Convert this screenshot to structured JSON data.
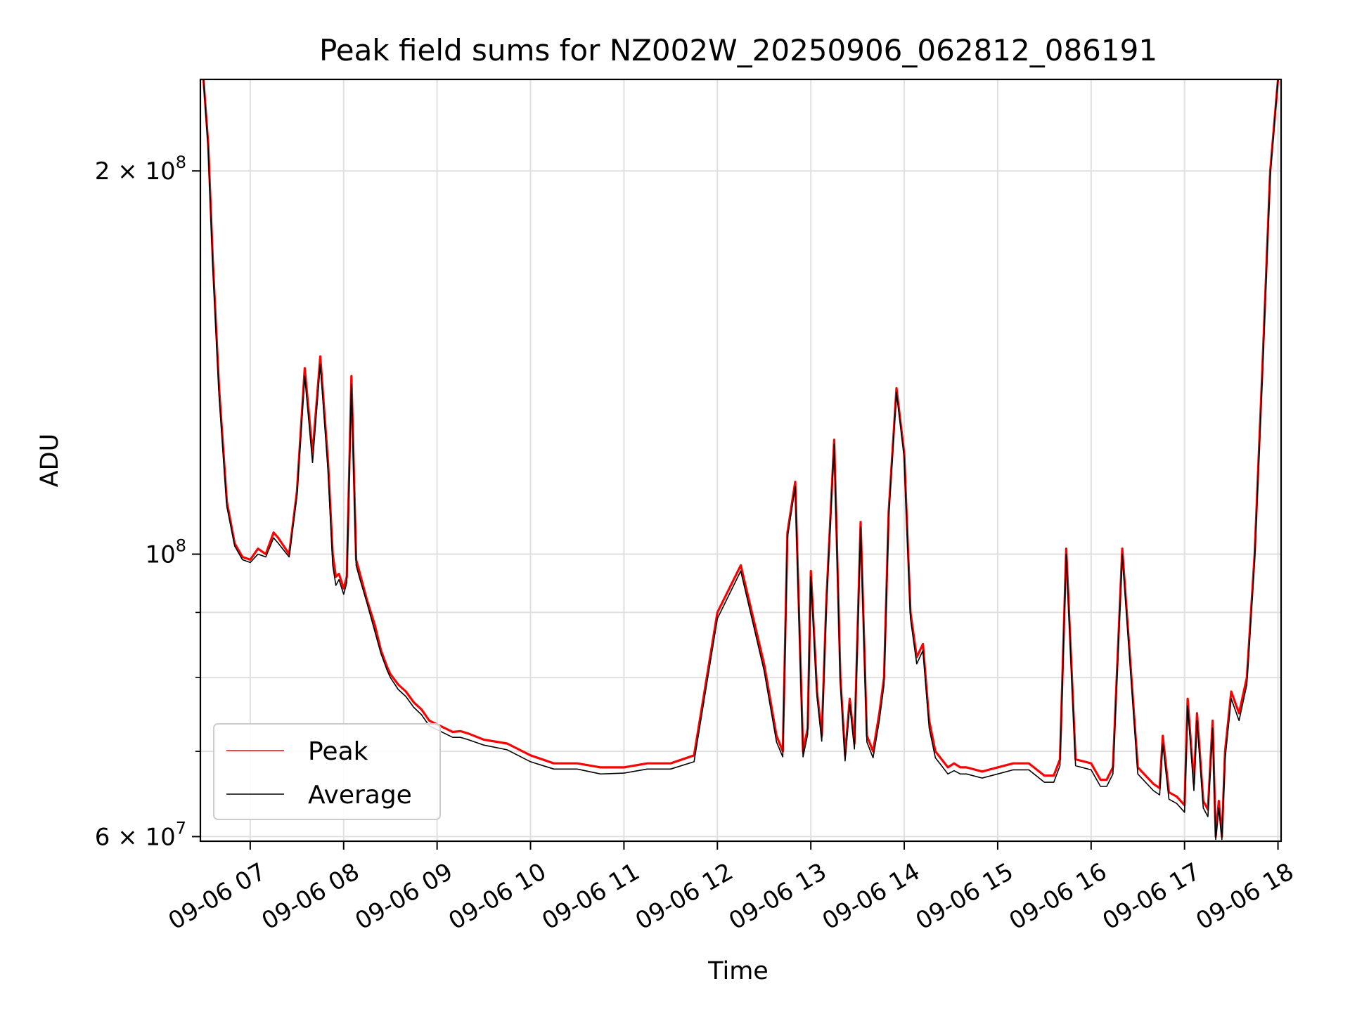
{
  "chart_data": {
    "type": "line",
    "title": "Peak field sums for NZ002W_20250906_062812_086191",
    "xlabel": "Time",
    "ylabel": "ADU",
    "yscale": "log",
    "xlim": [
      "2025-09-06 06:28",
      "2025-09-06 18:02"
    ],
    "ylim": [
      59500000,
      236000000
    ],
    "grid": true,
    "legend_position": "lower-left",
    "x_ticks": [
      "09-06 07",
      "09-06 08",
      "09-06 09",
      "09-06 10",
      "09-06 11",
      "09-06 12",
      "09-06 13",
      "09-06 14",
      "09-06 15",
      "09-06 16",
      "09-06 17",
      "09-06 18"
    ],
    "y_ticks": [
      {
        "value": 60000000,
        "label": "6 × 10⁷",
        "mantissa": "6 × 10",
        "exp": "7"
      },
      {
        "value": 100000000,
        "label": "10⁸",
        "mantissa": "10",
        "exp": "8"
      },
      {
        "value": 200000000,
        "label": "2 × 10⁸",
        "mantissa": "2 × 10",
        "exp": "8"
      }
    ],
    "series": [
      {
        "name": "Peak",
        "color": "#ff0000",
        "x": [
          "09-06 06:30",
          "09-06 06:33",
          "09-06 06:36",
          "09-06 06:40",
          "09-06 06:45",
          "09-06 06:50",
          "09-06 06:55",
          "09-06 07:00",
          "09-06 07:05",
          "09-06 07:10",
          "09-06 07:15",
          "09-06 07:18",
          "09-06 07:25",
          "09-06 07:30",
          "09-06 07:35",
          "09-06 07:40",
          "09-06 07:45",
          "09-06 07:50",
          "09-06 07:53",
          "09-06 07:55",
          "09-06 07:57",
          "09-06 08:00",
          "09-06 08:02",
          "09-06 08:05",
          "09-06 08:08",
          "09-06 08:10",
          "09-06 08:15",
          "09-06 08:20",
          "09-06 08:24",
          "09-06 08:28",
          "09-06 08:30",
          "09-06 08:35",
          "09-06 08:40",
          "09-06 08:45",
          "09-06 08:50",
          "09-06 08:55",
          "09-06 09:00",
          "09-06 09:05",
          "09-06 09:10",
          "09-06 09:15",
          "09-06 09:20",
          "09-06 09:30",
          "09-06 09:45",
          "09-06 10:00",
          "09-06 10:15",
          "09-06 10:30",
          "09-06 10:45",
          "09-06 11:00",
          "09-06 11:15",
          "09-06 11:30",
          "09-06 11:45",
          "09-06 12:00",
          "09-06 12:15",
          "09-06 12:30",
          "09-06 12:38",
          "09-06 12:42",
          "09-06 12:45",
          "09-06 12:50",
          "09-06 12:55",
          "09-06 12:58",
          "09-06 13:00",
          "09-06 13:04",
          "09-06 13:07",
          "09-06 13:10",
          "09-06 13:15",
          "09-06 13:19",
          "09-06 13:22",
          "09-06 13:25",
          "09-06 13:28",
          "09-06 13:32",
          "09-06 13:36",
          "09-06 13:40",
          "09-06 13:44",
          "09-06 13:47",
          "09-06 13:50",
          "09-06 13:55",
          "09-06 14:00",
          "09-06 14:04",
          "09-06 14:08",
          "09-06 14:12",
          "09-06 14:16",
          "09-06 14:20",
          "09-06 14:24",
          "09-06 14:28",
          "09-06 14:32",
          "09-06 14:36",
          "09-06 14:40",
          "09-06 14:50",
          "09-06 15:00",
          "09-06 15:10",
          "09-06 15:20",
          "09-06 15:30",
          "09-06 15:36",
          "09-06 15:40",
          "09-06 15:44",
          "09-06 15:50",
          "09-06 16:00",
          "09-06 16:06",
          "09-06 16:10",
          "09-06 16:14",
          "09-06 16:20",
          "09-06 16:30",
          "09-06 16:40",
          "09-06 16:44",
          "09-06 16:46",
          "09-06 16:50",
          "09-06 16:55",
          "09-06 17:00",
          "09-06 17:02",
          "09-06 17:06",
          "09-06 17:08",
          "09-06 17:12",
          "09-06 17:15",
          "09-06 17:18",
          "09-06 17:20",
          "09-06 17:22",
          "09-06 17:24",
          "09-06 17:26",
          "09-06 17:30",
          "09-06 17:35",
          "09-06 17:40",
          "09-06 17:45",
          "09-06 17:50",
          "09-06 17:55",
          "09-06 18:00"
        ],
        "values": [
          236000000,
          210000000,
          170000000,
          135000000,
          110000000,
          102000000,
          99500000,
          99000000,
          101000000,
          100000000,
          104000000,
          103000000,
          100000000,
          112000000,
          140000000,
          120000000,
          143000000,
          118000000,
          100000000,
          96000000,
          96500000,
          94000000,
          96000000,
          138000000,
          99000000,
          97000000,
          92000000,
          88000000,
          84000000,
          81500000,
          80500000,
          79000000,
          78000000,
          76500000,
          75500000,
          74000000,
          73500000,
          73000000,
          72500000,
          72600000,
          72300000,
          71500000,
          71000000,
          69500000,
          68500000,
          68500000,
          68000000,
          68000000,
          68500000,
          68500000,
          69500000,
          90000000,
          98000000,
          82000000,
          72000000,
          70000000,
          104000000,
          114000000,
          70000000,
          73000000,
          97000000,
          78000000,
          72000000,
          92000000,
          123000000,
          80000000,
          69500000,
          77000000,
          71000000,
          106000000,
          72000000,
          70000000,
          75000000,
          80000000,
          108000000,
          135000000,
          120000000,
          90000000,
          83000000,
          85000000,
          74000000,
          70000000,
          69000000,
          68000000,
          68500000,
          68000000,
          68000000,
          67500000,
          68000000,
          68500000,
          68500000,
          67000000,
          67000000,
          69000000,
          101000000,
          69000000,
          68500000,
          66500000,
          66500000,
          68000000,
          101000000,
          68000000,
          66000000,
          65500000,
          72000000,
          65000000,
          64500000,
          63500000,
          77000000,
          66000000,
          75000000,
          64000000,
          63000000,
          74000000,
          60000000,
          64000000,
          60000000,
          70000000,
          78000000,
          75000000,
          80000000,
          100000000,
          140000000,
          200000000,
          236000000
        ]
      },
      {
        "name": "Average",
        "color": "#000000",
        "x": [
          "09-06 06:30",
          "09-06 06:33",
          "09-06 06:36",
          "09-06 06:40",
          "09-06 06:45",
          "09-06 06:50",
          "09-06 06:55",
          "09-06 07:00",
          "09-06 07:05",
          "09-06 07:10",
          "09-06 07:15",
          "09-06 07:18",
          "09-06 07:25",
          "09-06 07:30",
          "09-06 07:35",
          "09-06 07:40",
          "09-06 07:45",
          "09-06 07:50",
          "09-06 07:53",
          "09-06 07:55",
          "09-06 07:57",
          "09-06 08:00",
          "09-06 08:02",
          "09-06 08:05",
          "09-06 08:08",
          "09-06 08:10",
          "09-06 08:15",
          "09-06 08:20",
          "09-06 08:24",
          "09-06 08:28",
          "09-06 08:30",
          "09-06 08:35",
          "09-06 08:40",
          "09-06 08:45",
          "09-06 08:50",
          "09-06 08:55",
          "09-06 09:00",
          "09-06 09:05",
          "09-06 09:10",
          "09-06 09:15",
          "09-06 09:20",
          "09-06 09:30",
          "09-06 09:45",
          "09-06 10:00",
          "09-06 10:15",
          "09-06 10:30",
          "09-06 10:45",
          "09-06 11:00",
          "09-06 11:15",
          "09-06 11:30",
          "09-06 11:45",
          "09-06 12:00",
          "09-06 12:15",
          "09-06 12:30",
          "09-06 12:38",
          "09-06 12:42",
          "09-06 12:45",
          "09-06 12:50",
          "09-06 12:55",
          "09-06 12:58",
          "09-06 13:00",
          "09-06 13:04",
          "09-06 13:07",
          "09-06 13:10",
          "09-06 13:15",
          "09-06 13:19",
          "09-06 13:22",
          "09-06 13:25",
          "09-06 13:28",
          "09-06 13:32",
          "09-06 13:36",
          "09-06 13:40",
          "09-06 13:44",
          "09-06 13:47",
          "09-06 13:50",
          "09-06 13:55",
          "09-06 14:00",
          "09-06 14:04",
          "09-06 14:08",
          "09-06 14:12",
          "09-06 14:16",
          "09-06 14:20",
          "09-06 14:24",
          "09-06 14:28",
          "09-06 14:32",
          "09-06 14:36",
          "09-06 14:40",
          "09-06 14:50",
          "09-06 15:00",
          "09-06 15:10",
          "09-06 15:20",
          "09-06 15:30",
          "09-06 15:36",
          "09-06 15:40",
          "09-06 15:44",
          "09-06 15:50",
          "09-06 16:00",
          "09-06 16:06",
          "09-06 16:10",
          "09-06 16:14",
          "09-06 16:20",
          "09-06 16:30",
          "09-06 16:40",
          "09-06 16:44",
          "09-06 16:46",
          "09-06 16:50",
          "09-06 16:55",
          "09-06 17:00",
          "09-06 17:02",
          "09-06 17:06",
          "09-06 17:08",
          "09-06 17:12",
          "09-06 17:15",
          "09-06 17:18",
          "09-06 17:20",
          "09-06 17:22",
          "09-06 17:24",
          "09-06 17:26",
          "09-06 17:30",
          "09-06 17:35",
          "09-06 17:40",
          "09-06 17:45",
          "09-06 17:50",
          "09-06 17:55",
          "09-06 18:00"
        ],
        "values": [
          236000000,
          208000000,
          168000000,
          133000000,
          109000000,
          101500000,
          99000000,
          98500000,
          100000000,
          99500000,
          103000000,
          102000000,
          99500000,
          111000000,
          138000000,
          118000000,
          141000000,
          116000000,
          98000000,
          94500000,
          95500000,
          93000000,
          95000000,
          136000000,
          98000000,
          96000000,
          91500000,
          87000000,
          83500000,
          81000000,
          80000000,
          78300000,
          77300000,
          75800000,
          74800000,
          73300000,
          72800000,
          72300000,
          71800000,
          71800000,
          71500000,
          70800000,
          70200000,
          68700000,
          67800000,
          67800000,
          67200000,
          67300000,
          67800000,
          67800000,
          68700000,
          89000000,
          97000000,
          81000000,
          71200000,
          69300000,
          103000000,
          113000000,
          69300000,
          72200000,
          96000000,
          77200000,
          71300000,
          91000000,
          122000000,
          79200000,
          68800000,
          76200000,
          70300000,
          105000000,
          71200000,
          69200000,
          74000000,
          79000000,
          107000000,
          134000000,
          119000000,
          89000000,
          82000000,
          84000000,
          73000000,
          69200000,
          68200000,
          67200000,
          67600000,
          67200000,
          67200000,
          66700000,
          67200000,
          67700000,
          67700000,
          66200000,
          66200000,
          68200000,
          100000000,
          68200000,
          67700000,
          65700000,
          65700000,
          67200000,
          100000000,
          67200000,
          65200000,
          64700000,
          71000000,
          64200000,
          63700000,
          62700000,
          76000000,
          65200000,
          74000000,
          63200000,
          62200000,
          73000000,
          59700000,
          63200000,
          59700000,
          69000000,
          77000000,
          74000000,
          79000000,
          99000000,
          138000000,
          198000000,
          236000000
        ]
      }
    ]
  }
}
